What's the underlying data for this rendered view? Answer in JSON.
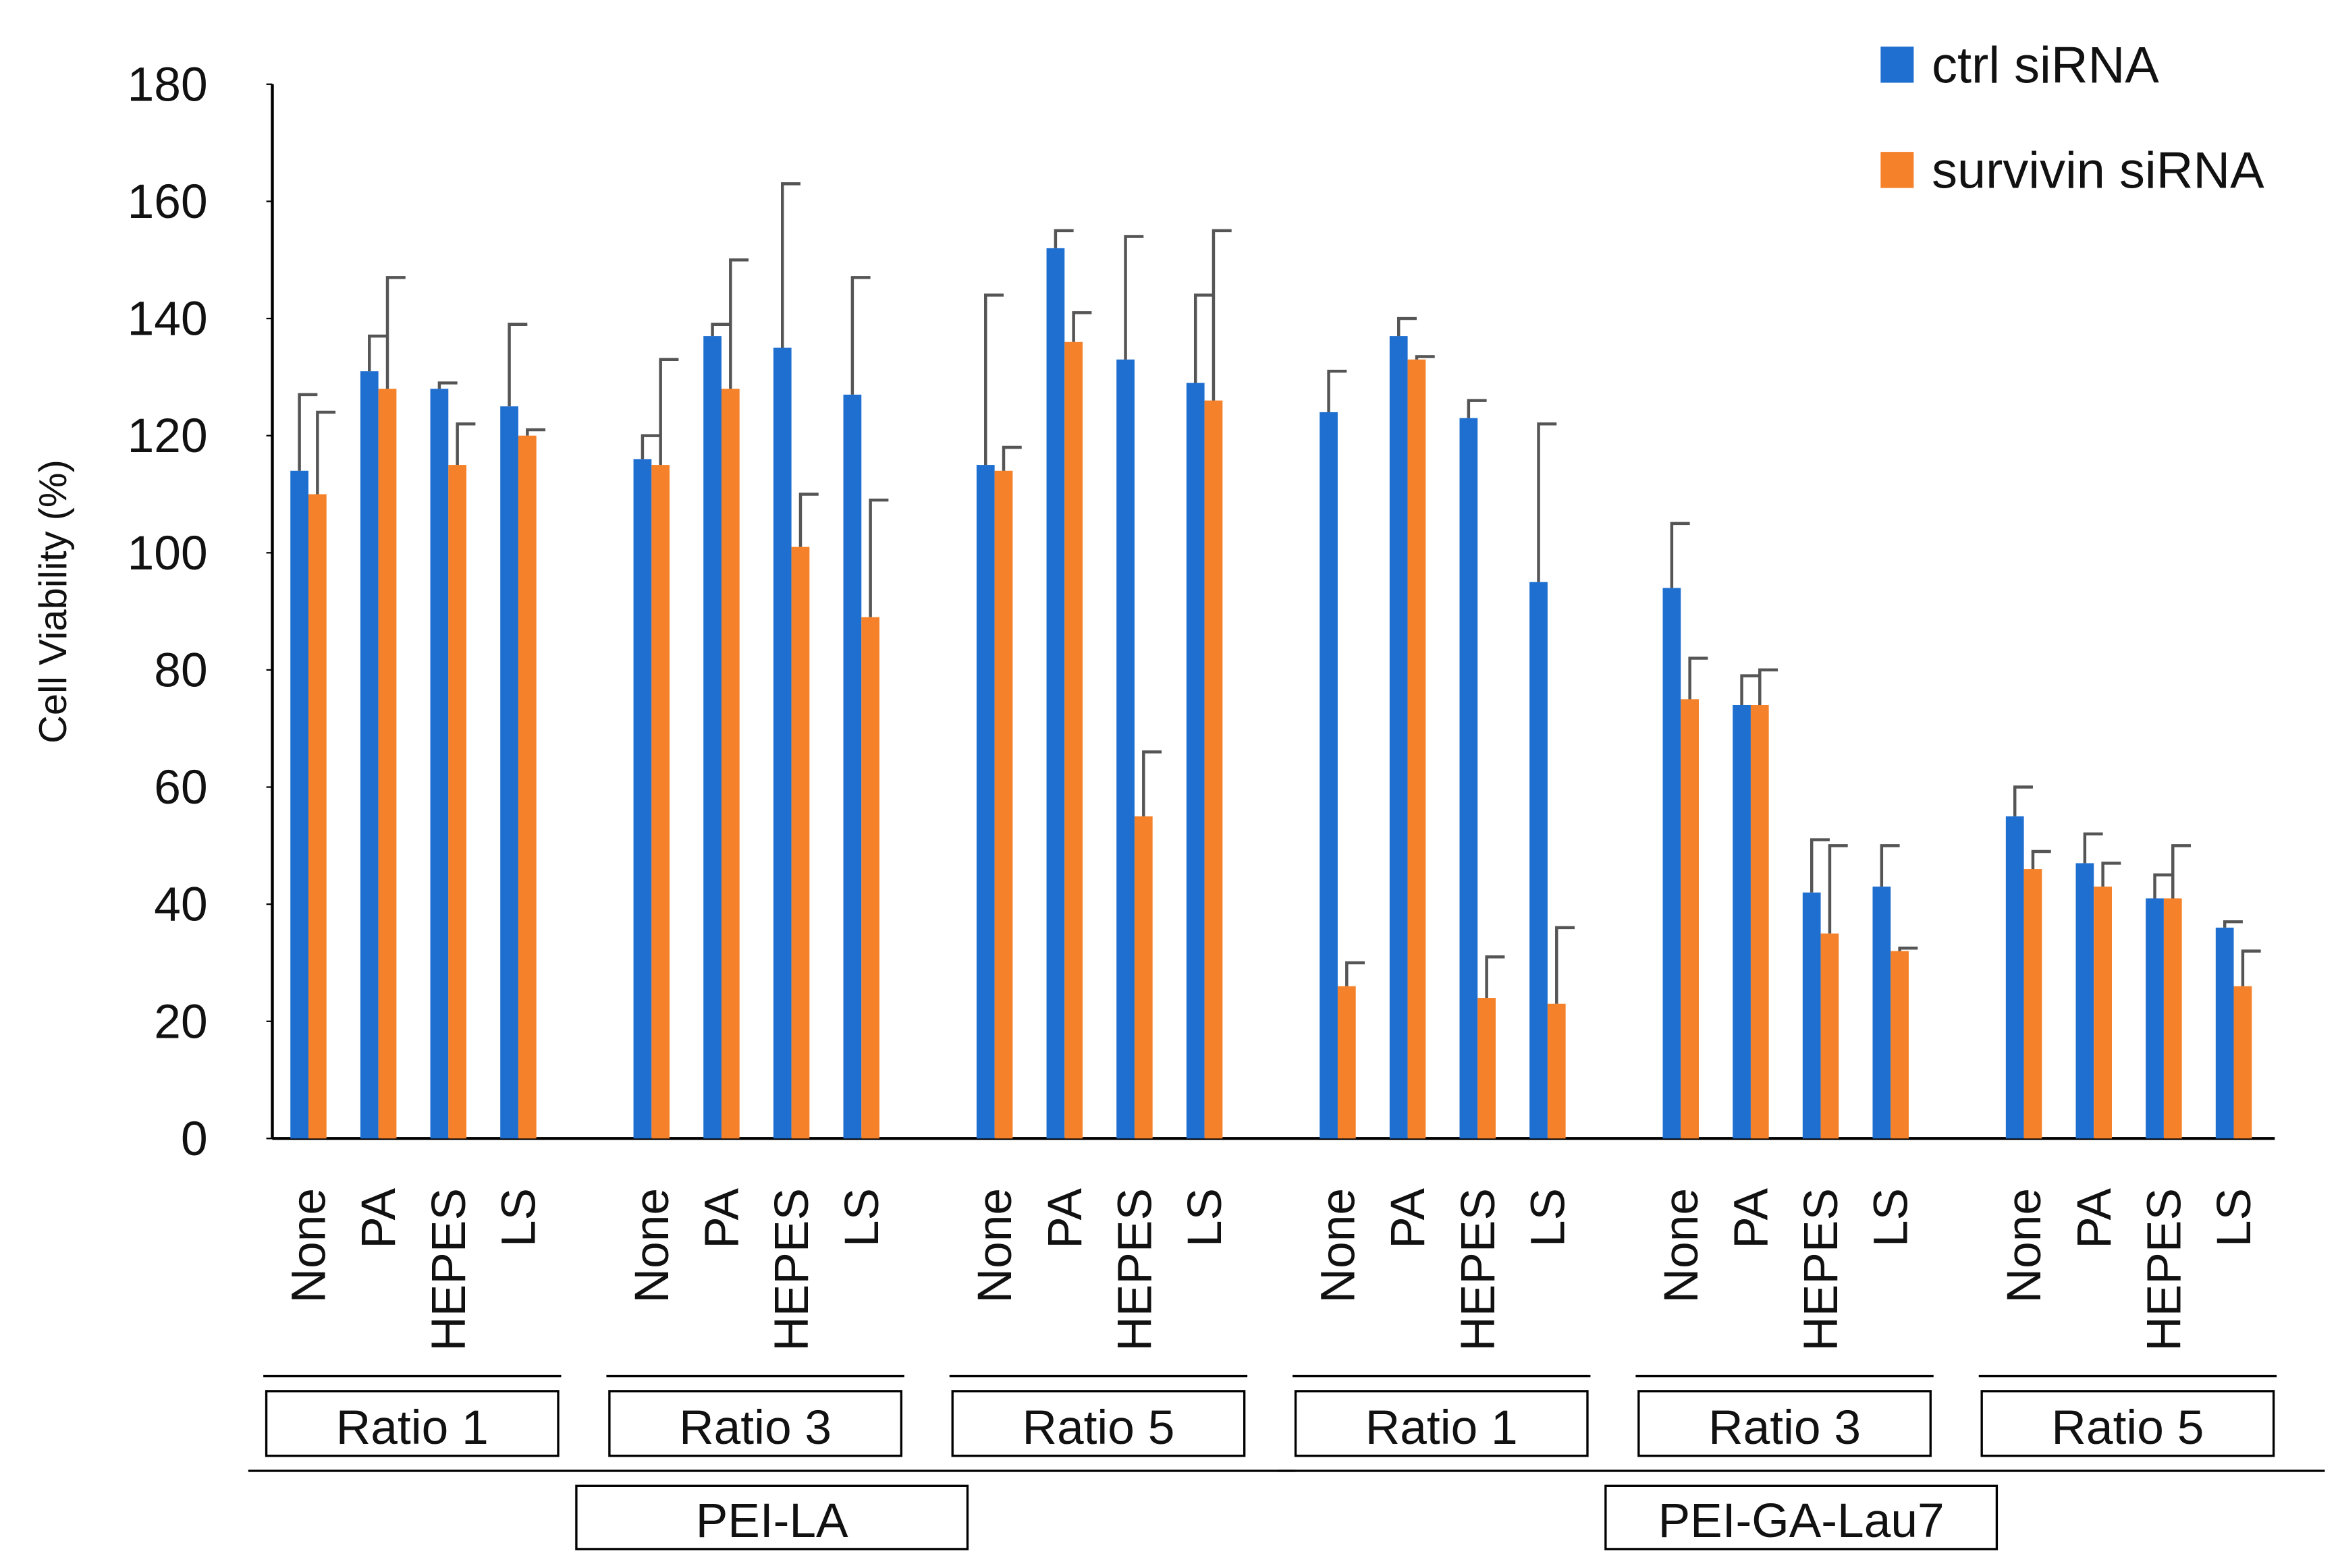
{
  "chart_data": {
    "type": "bar",
    "y_label": "Cell Viability (%)",
    "categories": [
      "None",
      "PA",
      "HEPES",
      "LS",
      "None",
      "PA",
      "HEPES",
      "LS",
      "None",
      "PA",
      "HEPES",
      "LS",
      "None",
      "PA",
      "HEPES",
      "LS",
      "None",
      "PA",
      "HEPES",
      "LS",
      "None",
      "PA",
      "HEPES",
      "LS"
    ],
    "groups": [
      {
        "name": "PEI-LA",
        "subgroups": [
          "Ratio 1",
          "Ratio 3",
          "Ratio 5"
        ]
      },
      {
        "name": "PEI-GA-Lau7",
        "subgroups": [
          "Ratio 1",
          "Ratio 3",
          "Ratio 5"
        ]
      }
    ],
    "series": [
      {
        "name": "ctrl siRNA",
        "color": "#1f6fd1",
        "values": [
          114,
          131,
          128,
          125,
          116,
          137,
          135,
          127,
          115,
          152,
          133,
          129,
          124,
          137,
          123,
          95,
          94,
          74,
          42,
          43,
          55,
          47,
          41,
          36
        ],
        "errors": [
          13,
          6,
          1,
          14,
          4,
          2,
          28,
          20,
          29,
          3,
          21,
          15,
          7,
          3,
          3,
          27,
          11,
          5,
          9,
          7,
          5,
          5,
          4,
          1
        ]
      },
      {
        "name": "survivin siRNA",
        "color": "#f5822a",
        "values": [
          110,
          128,
          115,
          120,
          115,
          128,
          101,
          89,
          114,
          136,
          55,
          126,
          26,
          133,
          24,
          23,
          75,
          74,
          35,
          32,
          46,
          43,
          41,
          26
        ],
        "errors": [
          14,
          19,
          7,
          1,
          18,
          22,
          9,
          20,
          4,
          5,
          11,
          29,
          4,
          0.5,
          7,
          13,
          7,
          6,
          15,
          0.5,
          3,
          4,
          9,
          6
        ]
      }
    ],
    "ylim": [
      0,
      180
    ],
    "yticks": [
      0,
      20,
      40,
      60,
      80,
      100,
      120,
      140,
      160,
      180
    ],
    "legend": "top-right",
    "error_bars": "upper"
  }
}
